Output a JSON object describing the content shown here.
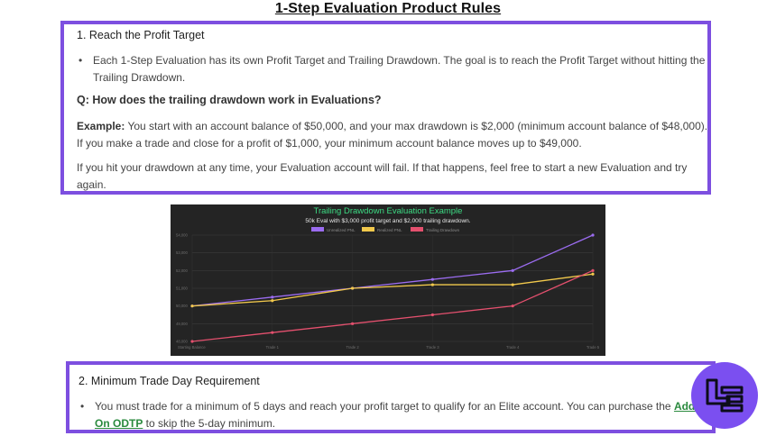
{
  "page": {
    "title": "1-Step Evaluation Product Rules"
  },
  "section1": {
    "heading": "1. Reach the Profit Target",
    "bullet": "Each 1-Step Evaluation has its own Profit Target and Trailing Drawdown. The goal is to reach the Profit Target without hitting the Trailing Drawdown.",
    "question": "Q: How does the trailing drawdown work in Evaluations?",
    "example_label": "Example:",
    "example_text": " You start with an account balance of $50,000, and your max drawdown is $2,000 (minimum account balance of $48,000). If you make a trade and close for a profit of $1,000, your minimum account balance moves up to $49,000.",
    "fail_text": "If you hit your drawdown at any time, your Evaluation account will fail. If that happens, feel free to start a new Evaluation and try again."
  },
  "section2": {
    "heading": "2. Minimum Trade Day Requirement",
    "bullet_pre": "You must trade for a minimum of 5 days and reach your profit target to qualify for an Elite account. You can purchase the ",
    "link_text": "Add-On ODTP",
    "bullet_post": " to skip the 5-day minimum."
  },
  "chart_data": {
    "type": "line",
    "title": "Trailing Drawdown Evaluation Example",
    "subtitle": "50k Eval with $3,000 profit target and $2,000 trailing drawdown.",
    "categories": [
      "Starting Balance",
      "Trade 1",
      "Trade 2",
      "Trade 3",
      "Trade 4",
      "Trade 5"
    ],
    "series": [
      {
        "name": "Unrealized PNL",
        "color": "#9b6cf0",
        "values": [
          50000,
          50500,
          51000,
          51500,
          52000,
          54000
        ]
      },
      {
        "name": "Realized PNL",
        "color": "#f2c94c",
        "values": [
          50000,
          50300,
          51000,
          51200,
          51200,
          51800
        ]
      },
      {
        "name": "Trailing Drawdown",
        "color": "#e4506e",
        "values": [
          48000,
          48500,
          49000,
          49500,
          50000,
          52000
        ]
      }
    ],
    "yticks": [
      "48,000",
      "49,000",
      "50,000",
      "51,000",
      "52,000",
      "53,000",
      "54,000"
    ],
    "ylim": [
      48000,
      54000
    ],
    "grid": true,
    "legend_position": "top-center",
    "title_color": "#3ddc84"
  },
  "logo": {
    "icon": "brand-logo-icon",
    "color": "#7b4ff0"
  }
}
